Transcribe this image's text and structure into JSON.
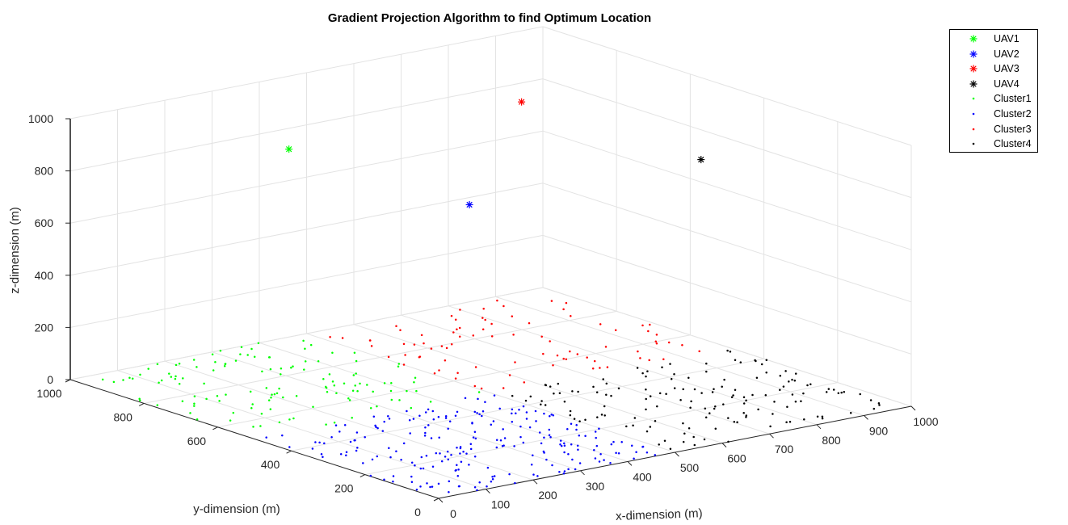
{
  "chart_data": {
    "type": "scatter3d",
    "title": "Gradient Projection Algorithm to find Optimum Location",
    "xlabel": "x-dimension (m)",
    "ylabel": "y-dimension (m)",
    "zlabel": "z-dimension (m)",
    "xlim": [
      0,
      1000
    ],
    "ylim": [
      0,
      1000
    ],
    "zlim": [
      0,
      1000
    ],
    "xticks": [
      0,
      100,
      200,
      300,
      400,
      500,
      600,
      700,
      800,
      900,
      1000
    ],
    "yticks": [
      0,
      200,
      400,
      600,
      800,
      1000
    ],
    "zticks": [
      0,
      200,
      400,
      600,
      800,
      1000
    ],
    "grid": true,
    "legend_position": "top-right",
    "uavs": [
      {
        "name": "UAV1",
        "x": 260,
        "y": 740,
        "z": 910,
        "color": "#00ff00"
      },
      {
        "name": "UAV2",
        "x": 260,
        "y": 250,
        "z": 920,
        "color": "#0000ff"
      },
      {
        "name": "UAV3",
        "x": 760,
        "y": 750,
        "z": 910,
        "color": "#ff0000"
      },
      {
        "name": "UAV4",
        "x": 750,
        "y": 250,
        "z": 920,
        "color": "#000000"
      }
    ],
    "clusters": [
      {
        "name": "Cluster1",
        "color": "#00ff00",
        "x_range": [
          0,
          500
        ],
        "y_range": [
          500,
          1000
        ],
        "count": 125
      },
      {
        "name": "Cluster2",
        "color": "#0000ff",
        "x_range": [
          0,
          500
        ],
        "y_range": [
          0,
          500
        ],
        "count": 220
      },
      {
        "name": "Cluster3",
        "color": "#ff0000",
        "x_range": [
          500,
          1000
        ],
        "y_range": [
          500,
          1000
        ],
        "count": 85
      },
      {
        "name": "Cluster4",
        "color": "#000000",
        "x_range": [
          500,
          1000
        ],
        "y_range": [
          0,
          500
        ],
        "count": 145
      }
    ]
  },
  "legend": {
    "items": [
      {
        "label": "UAV1",
        "marker": "asterisk",
        "color": "#00ff00"
      },
      {
        "label": "UAV2",
        "marker": "asterisk",
        "color": "#0000ff"
      },
      {
        "label": "UAV3",
        "marker": "asterisk",
        "color": "#ff0000"
      },
      {
        "label": "UAV4",
        "marker": "asterisk",
        "color": "#000000"
      },
      {
        "label": "Cluster1",
        "marker": "dot",
        "color": "#00ff00"
      },
      {
        "label": "Cluster2",
        "marker": "dot",
        "color": "#0000ff"
      },
      {
        "label": "Cluster3",
        "marker": "dot",
        "color": "#ff0000"
      },
      {
        "label": "Cluster4",
        "marker": "dot",
        "color": "#000000"
      }
    ]
  }
}
